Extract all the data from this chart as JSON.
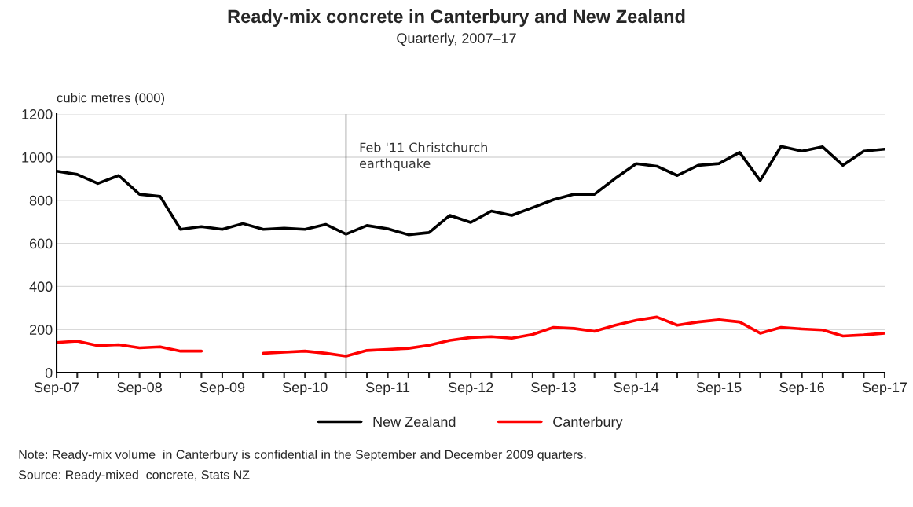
{
  "chart_data": {
    "type": "line",
    "title": "Ready-mix concrete in Canterbury and New Zealand",
    "subtitle": "Quarterly, 2007–17",
    "ylabel": "cubic metres (000)",
    "x": [
      "2007-09",
      "2007-12",
      "2008-03",
      "2008-06",
      "2008-09",
      "2008-12",
      "2009-03",
      "2009-06",
      "2009-09",
      "2009-12",
      "2010-03",
      "2010-06",
      "2010-09",
      "2010-12",
      "2011-03",
      "2011-06",
      "2011-09",
      "2011-12",
      "2012-03",
      "2012-06",
      "2012-09",
      "2012-12",
      "2013-03",
      "2013-06",
      "2013-09",
      "2013-12",
      "2014-03",
      "2014-06",
      "2014-09",
      "2014-12",
      "2015-03",
      "2015-06",
      "2015-09",
      "2015-12",
      "2016-03",
      "2016-06",
      "2016-09",
      "2016-12",
      "2017-03",
      "2017-06",
      "2017-09"
    ],
    "series": [
      {
        "name": "New Zealand",
        "color": "#000000",
        "values": [
          935,
          920,
          878,
          915,
          828,
          818,
          665,
          678,
          665,
          692,
          665,
          670,
          665,
          688,
          643,
          683,
          668,
          640,
          650,
          730,
          697,
          750,
          730,
          766,
          803,
          828,
          828,
          902,
          970,
          958,
          915,
          962,
          970,
          1022,
          892,
          1050,
          1028,
          1048,
          962,
          1028,
          1037
        ]
      },
      {
        "name": "Canterbury",
        "color": "#ff0000",
        "values": [
          140,
          146,
          125,
          130,
          115,
          120,
          100,
          100,
          null,
          null,
          90,
          95,
          100,
          90,
          77,
          103,
          108,
          113,
          127,
          150,
          163,
          167,
          160,
          177,
          210,
          205,
          192,
          220,
          243,
          258,
          220,
          235,
          245,
          235,
          183,
          210,
          203,
          198,
          170,
          175,
          183
        ]
      }
    ],
    "xlim": [
      "2007-09",
      "2017-09"
    ],
    "xticks": [
      {
        "value": "2007-09",
        "label": "Sep-07"
      },
      {
        "value": "2007-12",
        "label": null
      },
      {
        "value": "2008-03",
        "label": null
      },
      {
        "value": "2008-06",
        "label": null
      },
      {
        "value": "2008-09",
        "label": "Sep-08"
      },
      {
        "value": "2008-12",
        "label": null
      },
      {
        "value": "2009-03",
        "label": null
      },
      {
        "value": "2009-06",
        "label": null
      },
      {
        "value": "2009-09",
        "label": "Sep-09"
      },
      {
        "value": "2009-12",
        "label": null
      },
      {
        "value": "2010-03",
        "label": null
      },
      {
        "value": "2010-06",
        "label": null
      },
      {
        "value": "2010-09",
        "label": "Sep-10"
      },
      {
        "value": "2010-12",
        "label": null
      },
      {
        "value": "2011-03",
        "label": null
      },
      {
        "value": "2011-06",
        "label": null
      },
      {
        "value": "2011-09",
        "label": "Sep-11"
      },
      {
        "value": "2011-12",
        "label": null
      },
      {
        "value": "2012-03",
        "label": null
      },
      {
        "value": "2012-06",
        "label": null
      },
      {
        "value": "2012-09",
        "label": "Sep-12"
      },
      {
        "value": "2012-12",
        "label": null
      },
      {
        "value": "2013-03",
        "label": null
      },
      {
        "value": "2013-06",
        "label": null
      },
      {
        "value": "2013-09",
        "label": "Sep-13"
      },
      {
        "value": "2013-12",
        "label": null
      },
      {
        "value": "2014-03",
        "label": null
      },
      {
        "value": "2014-06",
        "label": null
      },
      {
        "value": "2014-09",
        "label": "Sep-14"
      },
      {
        "value": "2014-12",
        "label": null
      },
      {
        "value": "2015-03",
        "label": null
      },
      {
        "value": "2015-06",
        "label": null
      },
      {
        "value": "2015-09",
        "label": "Sep-15"
      },
      {
        "value": "2015-12",
        "label": null
      },
      {
        "value": "2016-03",
        "label": null
      },
      {
        "value": "2016-06",
        "label": null
      },
      {
        "value": "2016-09",
        "label": "Sep-16"
      },
      {
        "value": "2016-12",
        "label": null
      },
      {
        "value": "2017-03",
        "label": null
      },
      {
        "value": "2017-06",
        "label": null
      },
      {
        "value": "2017-09",
        "label": "Sep-17"
      }
    ],
    "ylim": [
      0,
      1200
    ],
    "yticks": [
      0,
      200,
      400,
      600,
      800,
      1000,
      1200
    ],
    "ref_lines": [
      {
        "axis": "x",
        "value": "2011-03",
        "label": "Feb '11 Christchurch\nearthquake",
        "color": "#404040"
      }
    ],
    "grid": "y",
    "legend": "bottom",
    "marker": "none",
    "line_style": "solid",
    "annotations": [
      "Note: Ready-mix volume  in Canterbury is confidential in the September and December 2009 quarters.",
      "Source: Ready-mixed  concrete, Stats NZ"
    ]
  }
}
